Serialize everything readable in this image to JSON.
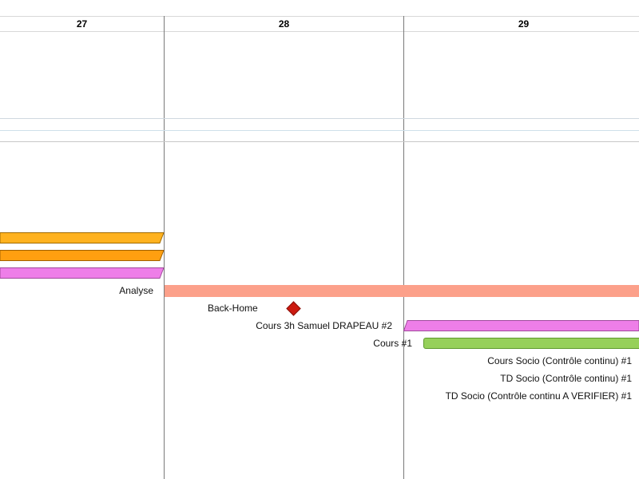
{
  "timeline": {
    "days": [
      {
        "label": "27"
      },
      {
        "label": "28"
      },
      {
        "label": "29"
      }
    ]
  },
  "colors": {
    "orange_light": "#ffb21f",
    "orange_dark": "#ff9f10",
    "pink": "#ee7ee8",
    "salmon": "#fca08a",
    "green": "#96d05a",
    "milestone_red": "#cc1a10",
    "grid_line": "#7a7a7a"
  },
  "tasks": {
    "analyse": {
      "label": "Analyse"
    },
    "back_home": {
      "label": "Back-Home"
    },
    "cours_samuel": {
      "label": "Cours 3h Samuel DRAPEAU #2"
    },
    "cours_1": {
      "label": "Cours #1"
    },
    "cours_socio": {
      "label": "Cours Socio (Contrôle continu) #1"
    },
    "td_socio": {
      "label": "TD Socio (Contrôle continu) #1"
    },
    "td_socio_verifier": {
      "label": "TD Socio (Contrôle continu A VERIFIER) #1"
    }
  }
}
